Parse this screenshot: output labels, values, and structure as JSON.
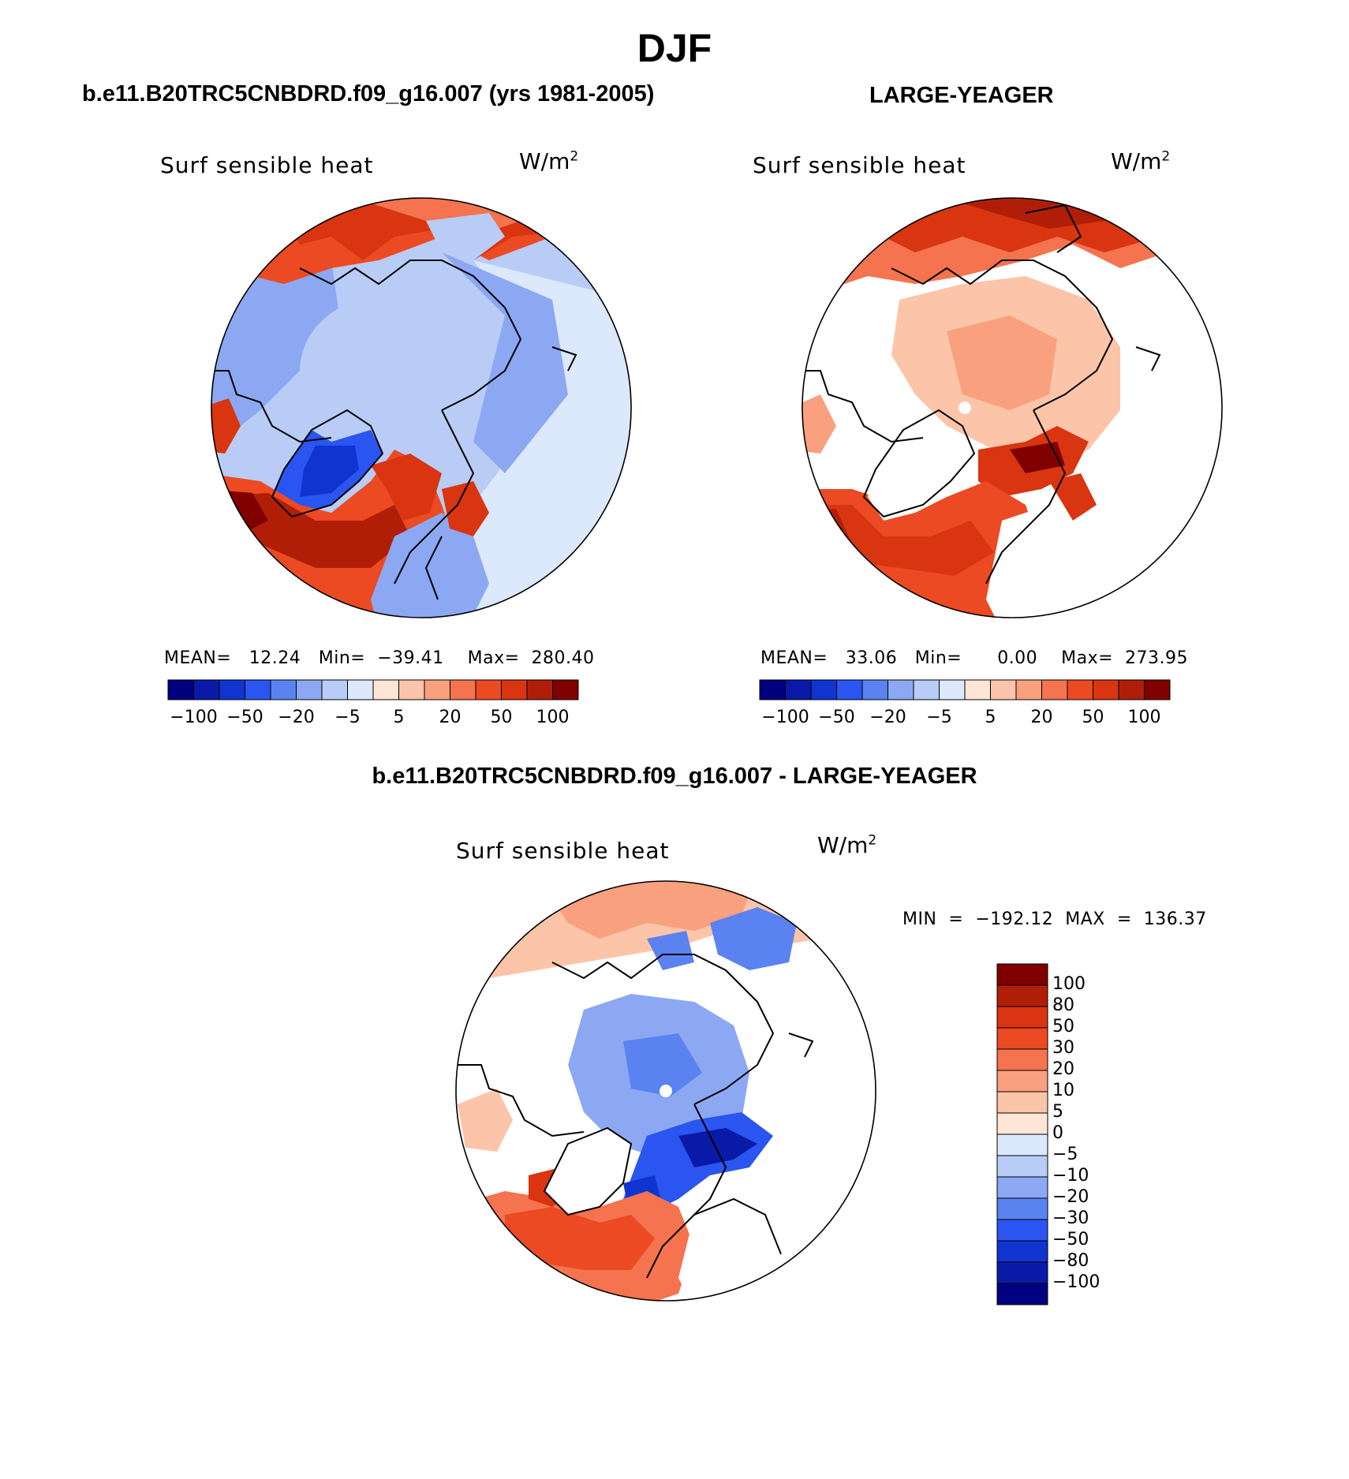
{
  "title": "DJF",
  "colors": {
    "neg": [
      "#000080",
      "#0a1aa8",
      "#1034d0",
      "#2a55f0",
      "#5a82f0",
      "#8ca8f2",
      "#b8ccf6",
      "#dce8fb"
    ],
    "pos": [
      "#fde6d6",
      "#fcc4a8",
      "#f9a07e",
      "#f5734e",
      "#ec4a22",
      "#d83510",
      "#b01e08",
      "#800000"
    ],
    "land_white": "#ffffff",
    "ocean_blue": "#b8ccf6"
  },
  "panels": [
    {
      "case_title": "b.e11.B20TRC5CNBDRD.f09_g16.007 (yrs 1981-2005)",
      "variable": "Surf  sensible  heat",
      "unit_base": "W/m",
      "unit_exp": "2",
      "stats": "MEAN=   12.24   Min=  −39.41    Max=  280.40",
      "colorbar_ticks": [
        "−100",
        "−50",
        "−20",
        "−5",
        "5",
        "20",
        "50",
        "100"
      ]
    },
    {
      "case_title": "LARGE-YEAGER",
      "variable": "Surf  sensible  heat",
      "unit_base": "W/m",
      "unit_exp": "2",
      "stats": "MEAN=   33.06   Min=      0.00    Max=  273.95",
      "colorbar_ticks": [
        "−100",
        "−50",
        "−20",
        "−5",
        "5",
        "20",
        "50",
        "100"
      ]
    }
  ],
  "difference": {
    "title": "b.e11.B20TRC5CNBDRD.f09_g16.007 - LARGE-YEAGER",
    "variable": "Surf  sensible  heat",
    "unit_base": "W/m",
    "unit_exp": "2",
    "minmax": "MIN  =  −192.12  MAX  =  136.37",
    "colorbar_levels": [
      "100",
      "80",
      "50",
      "30",
      "20",
      "10",
      "5",
      "0",
      "−5",
      "−10",
      "−20",
      "−30",
      "−50",
      "−80",
      "−100"
    ],
    "colorbar_colors": [
      "#800000",
      "#b01e08",
      "#d83510",
      "#ec4a22",
      "#f5734e",
      "#f9a07e",
      "#fcc4a8",
      "#fde6d6",
      "#dce8fb",
      "#b8ccf6",
      "#8ca8f2",
      "#5a82f0",
      "#2a55f0",
      "#1034d0",
      "#0a1aa8",
      "#000080"
    ]
  }
}
